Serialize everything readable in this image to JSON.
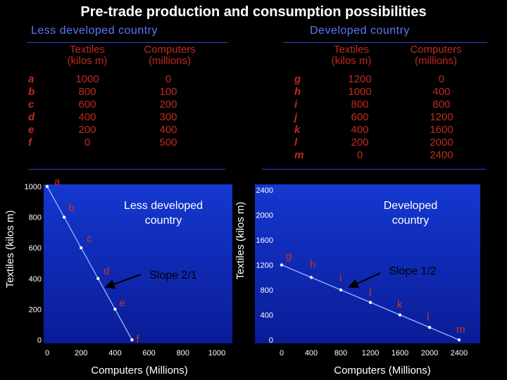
{
  "title": "Pre-trade production and consumption possibilities",
  "colors": {
    "heading_blue": "#5a78ff",
    "table_red": "#c12a1e",
    "chart_background": "#0d22a8",
    "label_red": "#d83018"
  },
  "ldc_table": {
    "heading": "Less developed country",
    "col1_header": [
      "Textiles",
      "(kilos m)"
    ],
    "col2_header": [
      "Computers",
      "(millions)"
    ],
    "rows": [
      {
        "letter": "a",
        "textiles": "1000",
        "computers": "0"
      },
      {
        "letter": "b",
        "textiles": "800",
        "computers": "100"
      },
      {
        "letter": "c",
        "textiles": "600",
        "computers": "200"
      },
      {
        "letter": "d",
        "textiles": "400",
        "computers": "300"
      },
      {
        "letter": "e",
        "textiles": "200",
        "computers": "400"
      },
      {
        "letter": "f",
        "textiles": "0",
        "computers": "500"
      }
    ]
  },
  "dc_table": {
    "heading": "Developed country",
    "col1_header": [
      "Textiles",
      "(kilos m)"
    ],
    "col2_header": [
      "Computers",
      "(millions)"
    ],
    "rows": [
      {
        "letter": "g",
        "textiles": "1200",
        "computers": "0"
      },
      {
        "letter": "h",
        "textiles": "1000",
        "computers": "400"
      },
      {
        "letter": "i",
        "textiles": "800",
        "computers": "800"
      },
      {
        "letter": "j",
        "textiles": "600",
        "computers": "1200"
      },
      {
        "letter": "k",
        "textiles": "400",
        "computers": "1600"
      },
      {
        "letter": "l",
        "textiles": "200",
        "computers": "2000"
      },
      {
        "letter": "m",
        "textiles": "0",
        "computers": "2400"
      }
    ]
  },
  "chart_data": [
    {
      "type": "line",
      "title": "Less developed country",
      "xlabel": "Computers (Millions)",
      "ylabel": "Textiles (kilos m)",
      "xlim": [
        0,
        1000
      ],
      "ylim": [
        0,
        1000
      ],
      "xticks": [
        0,
        200,
        400,
        600,
        800,
        1000
      ],
      "yticks": [
        0,
        200,
        400,
        600,
        800,
        1000
      ],
      "tick_labels_x": [
        "0",
        "200",
        "400",
        "600",
        "800",
        "1000"
      ],
      "tick_labels_y": [
        "0",
        "200",
        "400",
        "600",
        "800",
        "1000"
      ],
      "points": [
        {
          "label": "a",
          "x": 0,
          "y": 1000
        },
        {
          "label": "b",
          "x": 100,
          "y": 800
        },
        {
          "label": "c",
          "x": 200,
          "y": 600
        },
        {
          "label": "d",
          "x": 300,
          "y": 400
        },
        {
          "label": "e",
          "x": 400,
          "y": 200
        },
        {
          "label": "f",
          "x": 500,
          "y": 0
        }
      ],
      "annotation": "Slope 2/1",
      "annotation_points_to": 300
    },
    {
      "type": "line",
      "title": "Developed country",
      "xlabel": "Computers (Millions)",
      "ylabel": "Textiles (kilos m)",
      "xlim": [
        0,
        2400
      ],
      "ylim": [
        0,
        2400
      ],
      "xticks": [
        0,
        400,
        800,
        1200,
        1600,
        2000,
        2400
      ],
      "yticks": [
        0,
        400,
        800,
        1200,
        1600,
        2000,
        2400
      ],
      "tick_labels_x": [
        "0",
        "400",
        "800",
        "1200",
        "1600",
        "2000",
        "2400"
      ],
      "tick_labels_y": [
        "0",
        "400",
        "800",
        "1200",
        "1600",
        "2000",
        "2400"
      ],
      "points": [
        {
          "label": "g",
          "x": 0,
          "y": 1200
        },
        {
          "label": "h",
          "x": 400,
          "y": 1000
        },
        {
          "label": "i",
          "x": 800,
          "y": 800
        },
        {
          "label": "j",
          "x": 1200,
          "y": 600
        },
        {
          "label": "k",
          "x": 1600,
          "y": 400
        },
        {
          "label": "l",
          "x": 2000,
          "y": 200
        },
        {
          "label": "m",
          "x": 2400,
          "y": 0
        }
      ],
      "annotation": "Slope 1/2",
      "annotation_points_to": 800
    }
  ]
}
